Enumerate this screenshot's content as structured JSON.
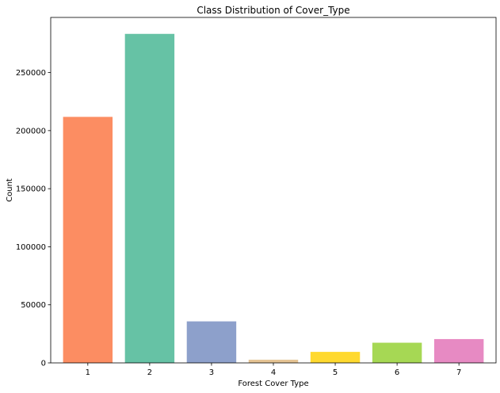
{
  "chart_data": {
    "type": "bar",
    "title": "Class Distribution of Cover_Type",
    "xlabel": "Forest Cover Type",
    "ylabel": "Count",
    "categories": [
      "1",
      "2",
      "3",
      "4",
      "5",
      "6",
      "7"
    ],
    "values": [
      211840,
      283301,
      35754,
      2747,
      9493,
      17367,
      20510
    ],
    "colors": [
      "#fc8d62",
      "#66c2a5",
      "#8da0cb",
      "#e5c494",
      "#ffd92f",
      "#a6d854",
      "#e78ac3"
    ],
    "ylim": [
      0,
      297466
    ],
    "yticks": [
      0,
      50000,
      100000,
      150000,
      200000,
      250000
    ],
    "ytick_labels": [
      "0",
      "50000",
      "100000",
      "150000",
      "200000",
      "250000"
    ],
    "grid": false,
    "legend": "none"
  }
}
